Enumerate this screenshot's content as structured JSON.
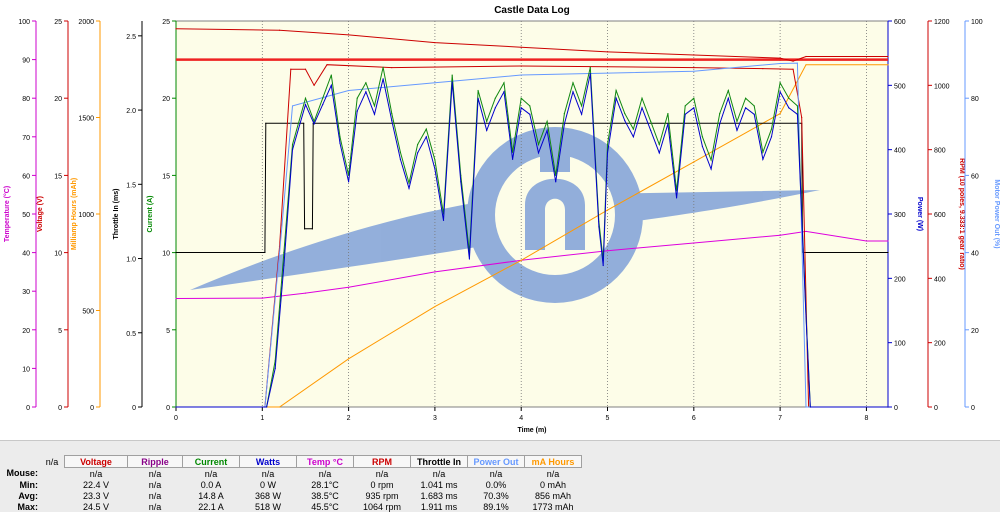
{
  "window": {
    "background_color": "#ececec"
  },
  "chart_data": {
    "type": "line",
    "title": "Castle Data Log",
    "xlabel": "Time (m)",
    "xlim": [
      0,
      8.25
    ],
    "x_ticks": [
      "0",
      "1",
      "2",
      "3",
      "4",
      "5",
      "6",
      "7",
      "8"
    ],
    "grid": "vertical-dotted",
    "plot_background": "#fdfde8",
    "watermark": "castle-logo",
    "left_axes": [
      {
        "name": "temperature",
        "label": "Temperature (°C)",
        "color": "#cc00cc",
        "range": [
          0,
          100
        ],
        "ticks": [
          "0",
          "10",
          "20",
          "30",
          "40",
          "50",
          "60",
          "70",
          "80",
          "90",
          "100"
        ]
      },
      {
        "name": "voltage",
        "label": "Voltage (V)",
        "color": "#cc0000",
        "range": [
          0,
          25
        ],
        "ticks": [
          "0",
          "5",
          "10",
          "15",
          "20",
          "25"
        ]
      },
      {
        "name": "mah",
        "label": "Milliamp Hours (mAh)",
        "color": "#ff9900",
        "range": [
          0,
          2000
        ],
        "ticks": [
          "0",
          "500",
          "1000",
          "1500",
          "2000"
        ]
      },
      {
        "name": "throttle",
        "label": "Throttle In (ms)",
        "color": "#000000",
        "range": [
          0,
          2.6
        ],
        "ticks": [
          "0",
          "0.5",
          "1.0",
          "1.5",
          "2.0",
          "2.5"
        ]
      },
      {
        "name": "current",
        "label": "Current (A)",
        "color": "#008800",
        "range": [
          0,
          25
        ],
        "ticks": [
          "0",
          "5",
          "10",
          "15",
          "20",
          "25"
        ]
      }
    ],
    "right_axes": [
      {
        "name": "power",
        "label": "Power (W)",
        "color": "#0000cc",
        "range": [
          0,
          600
        ],
        "ticks": [
          "0",
          "100",
          "200",
          "300",
          "400",
          "500",
          "600"
        ]
      },
      {
        "name": "rpm",
        "label": "RPM (10 poles, 9.333:1 gear ratio)",
        "color": "#cc0000",
        "range": [
          0,
          1200
        ],
        "ticks": [
          "0",
          "200",
          "400",
          "600",
          "800",
          "1000",
          "1200"
        ]
      },
      {
        "name": "powerout",
        "label": "Motor Power Out (%)",
        "color": "#6699ff",
        "range": [
          0,
          100
        ],
        "ticks": [
          "0",
          "20",
          "40",
          "60",
          "80",
          "100"
        ]
      }
    ],
    "series": [
      {
        "name": "Voltage",
        "color": "#cc0000",
        "axis": "voltage",
        "x": [
          0,
          1.2,
          2.0,
          3.0,
          4.0,
          5.0,
          6.0,
          7.0,
          7.15,
          7.3,
          8.25
        ],
        "y": [
          24.5,
          24.4,
          24.1,
          23.6,
          23.3,
          23.0,
          22.8,
          22.6,
          22.4,
          22.7,
          22.7
        ]
      },
      {
        "name": "Temp °C",
        "color": "#dd00dd",
        "axis": "temperature",
        "x": [
          0,
          1.0,
          1.5,
          2.0,
          3.0,
          4.0,
          5.0,
          6.0,
          7.0,
          7.3,
          8.0,
          8.25
        ],
        "y": [
          28.1,
          28.2,
          29.5,
          31.0,
          35.0,
          38.0,
          40.5,
          42.5,
          44.5,
          45.5,
          43.0,
          43.0
        ]
      },
      {
        "name": "mA Hours",
        "color": "#ff9900",
        "axis": "mah",
        "x": [
          0,
          1.2,
          2.0,
          3.0,
          4.0,
          5.0,
          6.0,
          7.0,
          7.3,
          8.25
        ],
        "y": [
          0,
          0,
          250,
          520,
          760,
          1020,
          1270,
          1520,
          1773,
          1773
        ]
      },
      {
        "name": "Throttle In",
        "color": "#000000",
        "axis": "throttle",
        "x": [
          0,
          1.03,
          1.04,
          1.48,
          1.49,
          1.58,
          1.59,
          7.25,
          7.26,
          8.25
        ],
        "y": [
          1.041,
          1.041,
          1.911,
          1.911,
          1.2,
          1.2,
          1.911,
          1.911,
          1.041,
          1.041
        ]
      },
      {
        "name": "RPM",
        "color": "#cc0000",
        "axis": "rpm",
        "x": [
          0,
          1.03,
          1.2,
          1.33,
          1.5,
          1.6,
          1.75,
          2.5,
          4.0,
          5.0,
          6.0,
          6.8,
          7.15,
          7.25,
          7.33,
          8.25
        ],
        "y": [
          0,
          0,
          500,
          1050,
          1050,
          1000,
          1064,
          1055,
          1060,
          1058,
          1055,
          1052,
          1050,
          900,
          0,
          0
        ]
      },
      {
        "name": "Power Out",
        "color": "#6699ff",
        "axis": "powerout",
        "x": [
          0,
          1.03,
          1.2,
          1.35,
          2.0,
          3.0,
          4.0,
          5.0,
          6.0,
          7.0,
          7.2,
          7.3,
          8.25
        ],
        "y": [
          0,
          0,
          40,
          78,
          82,
          84,
          86,
          86.5,
          87,
          89,
          89.1,
          0,
          0
        ]
      },
      {
        "name": "Current",
        "color": "#118811",
        "axis": "current",
        "x": [
          0,
          1.05,
          1.15,
          1.25,
          1.35,
          1.5,
          1.6,
          1.7,
          1.8,
          1.9,
          2.0,
          2.1,
          2.2,
          2.3,
          2.4,
          2.5,
          2.6,
          2.7,
          2.8,
          2.9,
          3.0,
          3.1,
          3.2,
          3.3,
          3.4,
          3.5,
          3.6,
          3.7,
          3.8,
          3.9,
          4.0,
          4.1,
          4.2,
          4.3,
          4.4,
          4.5,
          4.6,
          4.7,
          4.8,
          4.9,
          4.95,
          5.0,
          5.1,
          5.2,
          5.3,
          5.4,
          5.5,
          5.6,
          5.7,
          5.8,
          5.9,
          6.0,
          6.1,
          6.2,
          6.3,
          6.4,
          6.5,
          6.6,
          6.7,
          6.8,
          6.9,
          7.0,
          7.1,
          7.2,
          7.3,
          7.35,
          8.25
        ],
        "y": [
          0,
          0,
          3.0,
          10.0,
          17.0,
          20.0,
          18.5,
          20.0,
          21.5,
          17.5,
          15.0,
          20.0,
          21.0,
          19.5,
          22.0,
          19.0,
          16.5,
          14.5,
          17.0,
          18.0,
          16.0,
          12.5,
          21.5,
          15.0,
          10.0,
          20.5,
          18.5,
          20.0,
          21.0,
          16.5,
          20.0,
          19.5,
          17.0,
          18.5,
          15.0,
          19.0,
          21.0,
          19.5,
          22.0,
          12.0,
          9.5,
          17.0,
          20.5,
          19.0,
          18.0,
          20.0,
          18.5,
          17.0,
          19.0,
          14.0,
          19.5,
          20.0,
          17.5,
          16.0,
          19.0,
          20.5,
          18.5,
          20.0,
          19.5,
          16.5,
          18.0,
          21.0,
          20.0,
          19.5,
          6.0,
          0,
          0
        ]
      },
      {
        "name": "Watts",
        "color": "#0000cc",
        "axis": "power",
        "x": [
          0,
          1.05,
          1.15,
          1.25,
          1.35,
          1.5,
          1.6,
          1.7,
          1.8,
          1.9,
          2.0,
          2.1,
          2.2,
          2.3,
          2.4,
          2.5,
          2.6,
          2.7,
          2.8,
          2.9,
          3.0,
          3.1,
          3.2,
          3.3,
          3.4,
          3.5,
          3.6,
          3.7,
          3.8,
          3.9,
          4.0,
          4.1,
          4.2,
          4.3,
          4.4,
          4.5,
          4.6,
          4.7,
          4.8,
          4.9,
          4.95,
          5.0,
          5.1,
          5.2,
          5.3,
          5.4,
          5.5,
          5.6,
          5.7,
          5.8,
          5.9,
          6.0,
          6.1,
          6.2,
          6.3,
          6.4,
          6.5,
          6.6,
          6.7,
          6.8,
          6.9,
          7.0,
          7.1,
          7.2,
          7.3,
          7.35,
          8.25
        ],
        "y": [
          0,
          0,
          60,
          220,
          400,
          470,
          440,
          470,
          500,
          410,
          350,
          460,
          490,
          455,
          510,
          445,
          385,
          340,
          395,
          420,
          370,
          290,
          505,
          350,
          230,
          480,
          430,
          465,
          490,
          385,
          465,
          455,
          395,
          430,
          350,
          440,
          490,
          455,
          518,
          280,
          220,
          395,
          480,
          445,
          420,
          465,
          430,
          395,
          440,
          325,
          455,
          465,
          405,
          370,
          440,
          480,
          430,
          465,
          455,
          385,
          420,
          490,
          465,
          455,
          140,
          0,
          0
        ]
      }
    ],
    "annotations": [
      {
        "kind": "horizontal-line",
        "color": "#ee2222",
        "axis": "voltage",
        "value": 22.5
      }
    ]
  },
  "stats": {
    "columns": [
      {
        "label": "n/a",
        "color": "#000000",
        "bordered": false
      },
      {
        "label": "Voltage",
        "color": "#cc0000",
        "bordered": true
      },
      {
        "label": "Ripple",
        "color": "#880088",
        "bordered": true
      },
      {
        "label": "Current",
        "color": "#008800",
        "bordered": true
      },
      {
        "label": "Watts",
        "color": "#0000cc",
        "bordered": true
      },
      {
        "label": "Temp °C",
        "color": "#cc00cc",
        "bordered": true
      },
      {
        "label": "RPM",
        "color": "#cc0000",
        "bordered": true
      },
      {
        "label": "Throttle In",
        "color": "#000000",
        "bordered": true
      },
      {
        "label": "Power Out",
        "color": "#6699ff",
        "bordered": true
      },
      {
        "label": "mA Hours",
        "color": "#ff9900",
        "bordered": true
      }
    ],
    "rows": [
      {
        "label": "Mouse:",
        "values": [
          "n/a",
          "n/a",
          "n/a",
          "n/a",
          "n/a",
          "n/a",
          "n/a",
          "n/a",
          "n/a"
        ]
      },
      {
        "label": "Min:",
        "values": [
          "22.4 V",
          "n/a",
          "0.0 A",
          "0 W",
          "28.1°C",
          "0 rpm",
          "1.041 ms",
          "0.0%",
          "0 mAh"
        ]
      },
      {
        "label": "Avg:",
        "values": [
          "23.3 V",
          "n/a",
          "14.8 A",
          "368 W",
          "38.5°C",
          "935 rpm",
          "1.683 ms",
          "70.3%",
          "856 mAh"
        ]
      },
      {
        "label": "Max:",
        "values": [
          "24.5 V",
          "n/a",
          "22.1 A",
          "518 W",
          "45.5°C",
          "1064 rpm",
          "1.911 ms",
          "89.1%",
          "1773 mAh"
        ]
      }
    ]
  }
}
